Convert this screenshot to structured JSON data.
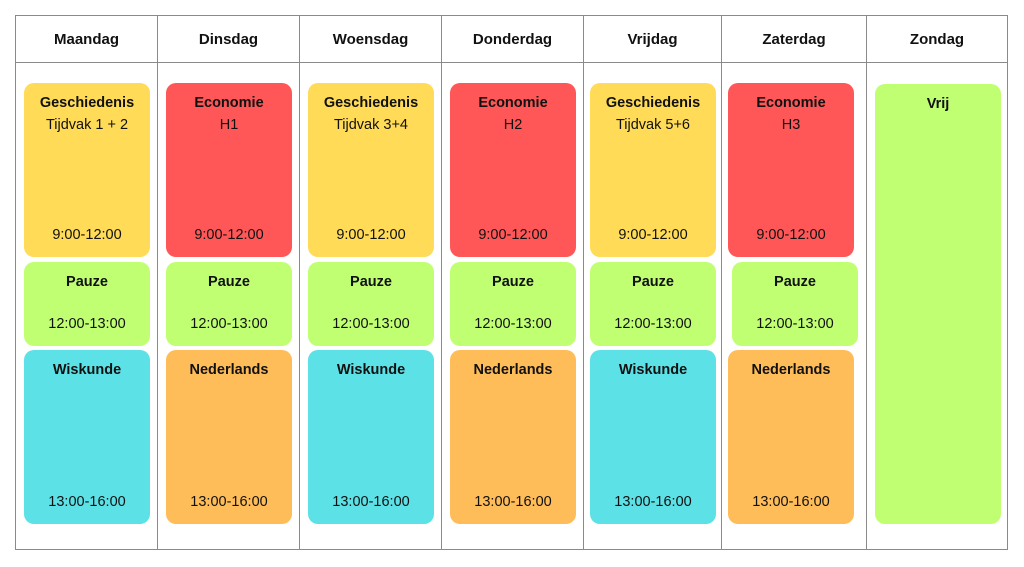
{
  "days": [
    {
      "name": "Maandag",
      "morning": {
        "subject": "Geschiedenis",
        "detail": "Tijdvak 1 + 2",
        "time": "9:00-12:00",
        "color": "#FFDB57"
      },
      "break": {
        "subject": "Pauze",
        "time": "12:00-13:00",
        "color": "#C1FF72"
      },
      "afternoon": {
        "subject": "Wiskunde",
        "time": "13:00-16:00",
        "color": "#5CE1E6"
      }
    },
    {
      "name": "Dinsdag",
      "morning": {
        "subject": "Economie",
        "detail": "H1",
        "time": "9:00-12:00",
        "color": "#FF5757"
      },
      "break": {
        "subject": "Pauze",
        "time": "12:00-13:00",
        "color": "#C1FF72"
      },
      "afternoon": {
        "subject": "Nederlands",
        "time": "13:00-16:00",
        "color": "#FFBD59"
      }
    },
    {
      "name": "Woensdag",
      "morning": {
        "subject": "Geschiedenis",
        "detail": "Tijdvak 3+4",
        "time": "9:00-12:00",
        "color": "#FFDB57"
      },
      "break": {
        "subject": "Pauze",
        "time": "12:00-13:00",
        "color": "#C1FF72"
      },
      "afternoon": {
        "subject": "Wiskunde",
        "time": "13:00-16:00",
        "color": "#5CE1E6"
      }
    },
    {
      "name": "Donderdag",
      "morning": {
        "subject": "Economie",
        "detail": "H2",
        "time": "9:00-12:00",
        "color": "#FF5757"
      },
      "break": {
        "subject": "Pauze",
        "time": "12:00-13:00",
        "color": "#C1FF72"
      },
      "afternoon": {
        "subject": "Nederlands",
        "time": "13:00-16:00",
        "color": "#FFBD59"
      }
    },
    {
      "name": "Vrijdag",
      "morning": {
        "subject": "Geschiedenis",
        "detail": "Tijdvak 5+6",
        "time": "9:00-12:00",
        "color": "#FFDB57"
      },
      "break": {
        "subject": "Pauze",
        "time": "12:00-13:00",
        "color": "#C1FF72"
      },
      "afternoon": {
        "subject": "Wiskunde",
        "time": "13:00-16:00",
        "color": "#5CE1E6"
      }
    },
    {
      "name": "Zaterdag",
      "morning": {
        "subject": "Economie",
        "detail": "H3",
        "time": "9:00-12:00",
        "color": "#FF5757"
      },
      "break": {
        "subject": "Pauze",
        "time": "12:00-13:00",
        "color": "#C1FF72"
      },
      "afternoon": {
        "subject": "Nederlands",
        "time": "13:00-16:00",
        "color": "#FFBD59"
      }
    },
    {
      "name": "Zondag",
      "free": {
        "subject": "Vrij",
        "color": "#C1FF72"
      }
    }
  ]
}
